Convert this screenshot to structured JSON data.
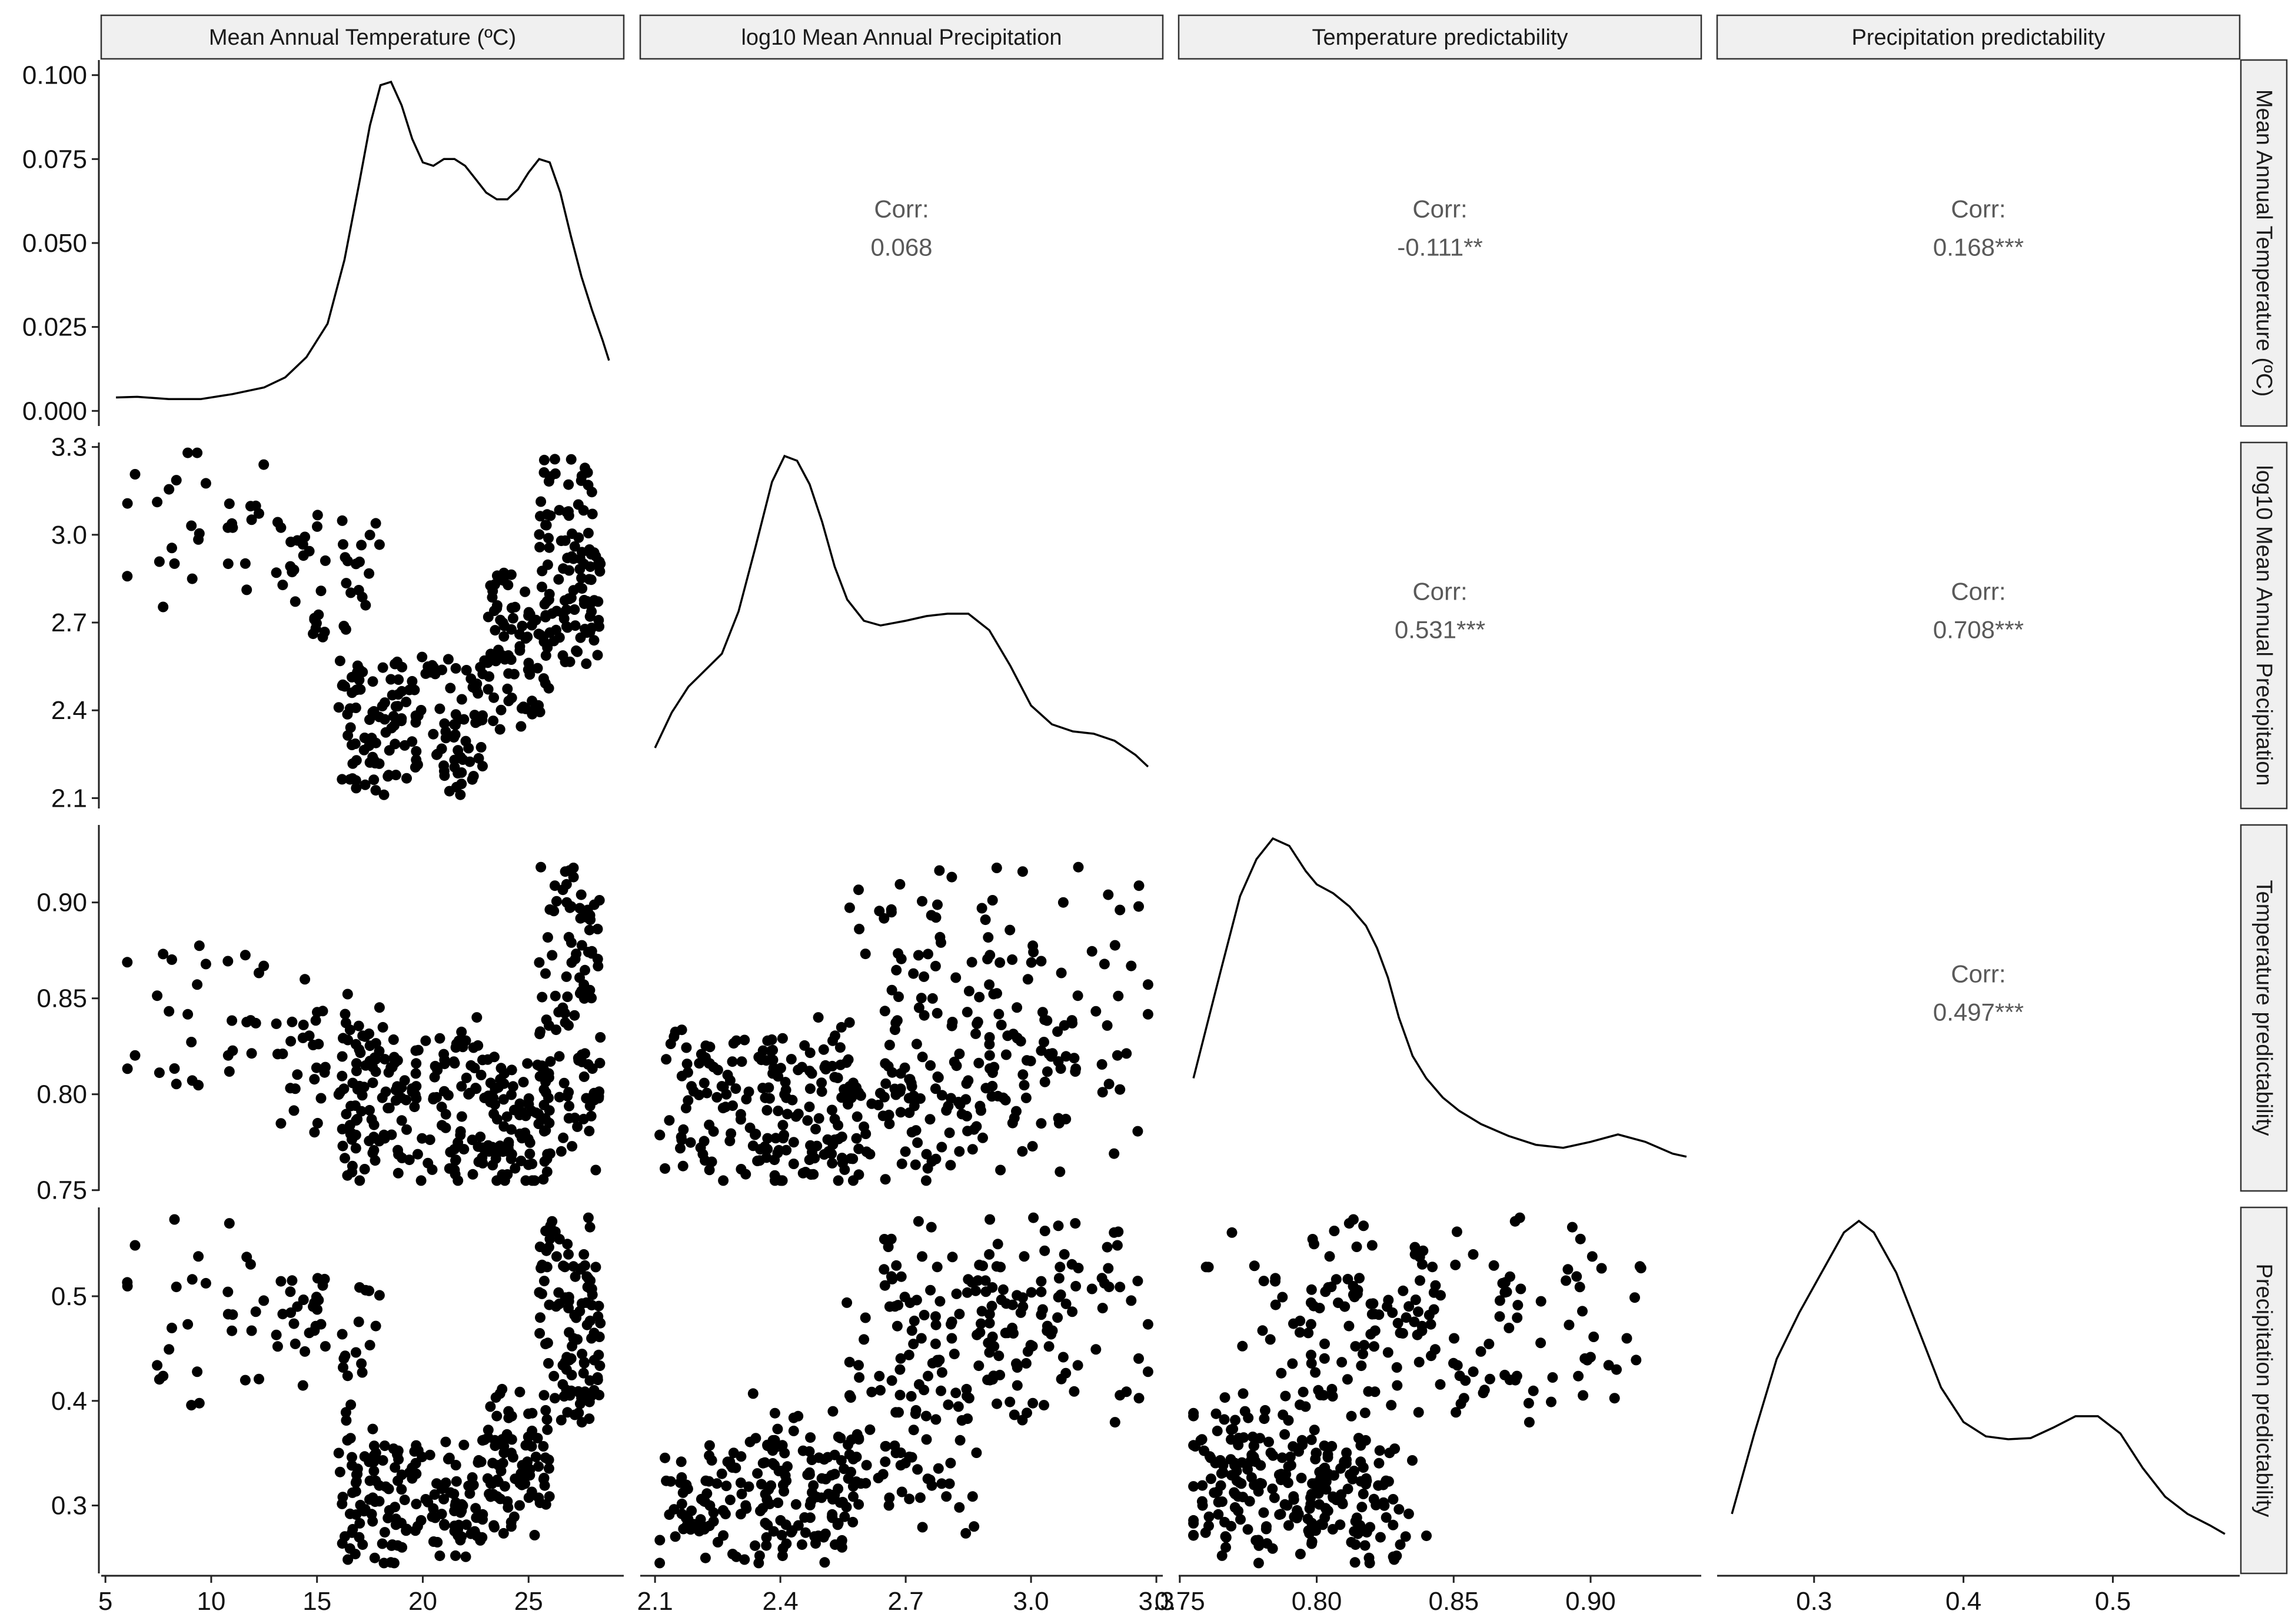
{
  "chart_data": {
    "type": "scatter",
    "variables": [
      {
        "key": "mat",
        "label": "Mean Annual Temperature (ºC)",
        "range": [
          5.5,
          28.8
        ],
        "ticks": [
          5,
          10,
          15,
          20,
          25
        ],
        "tick_labels": [
          "5",
          "10",
          "15",
          "20",
          "25"
        ]
      },
      {
        "key": "map",
        "label": "log10 Mean Annual Precipitation",
        "range": [
          2.1,
          3.28
        ],
        "ticks": [
          2.1,
          2.4,
          2.7,
          3.0,
          3.3
        ],
        "tick_labels": [
          "2.1",
          "2.4",
          "2.7",
          "3.0",
          "3.3"
        ]
      },
      {
        "key": "tp",
        "label": "Temperature predictability",
        "range": [
          0.755,
          0.935
        ],
        "ticks": [
          0.75,
          0.8,
          0.85,
          0.9
        ],
        "tick_labels": [
          "0.75",
          "0.80",
          "0.85",
          "0.90"
        ]
      },
      {
        "key": "pp",
        "label": "Precipitation predictability",
        "range": [
          0.245,
          0.575
        ],
        "ticks": [
          0.3,
          0.4,
          0.5
        ],
        "tick_labels": [
          "0.3",
          "0.4",
          "0.5"
        ]
      }
    ],
    "density_axis": {
      "ylim": [
        0,
        0.1
      ],
      "ticks": [
        0,
        0.025,
        0.05,
        0.075,
        0.1
      ],
      "tick_labels": [
        "0.000",
        "0.025",
        "0.050",
        "0.075",
        "0.100"
      ]
    },
    "densities": [
      {
        "var": "mat",
        "x": [
          5.5,
          6.5,
          8,
          9.5,
          11,
          12.5,
          13.5,
          14.5,
          15.5,
          16.3,
          17,
          17.5,
          18,
          18.5,
          19,
          19.5,
          20,
          20.5,
          21,
          21.5,
          22,
          22.5,
          23,
          23.5,
          24,
          24.5,
          25,
          25.5,
          26,
          26.5,
          27,
          27.5,
          28,
          28.5,
          28.8
        ],
        "y": [
          0.004,
          0.0042,
          0.0035,
          0.0035,
          0.005,
          0.007,
          0.01,
          0.016,
          0.026,
          0.045,
          0.068,
          0.085,
          0.097,
          0.098,
          0.091,
          0.081,
          0.074,
          0.073,
          0.075,
          0.075,
          0.073,
          0.069,
          0.065,
          0.063,
          0.063,
          0.066,
          0.071,
          0.075,
          0.074,
          0.065,
          0.052,
          0.04,
          0.03,
          0.021,
          0.015
        ]
      },
      {
        "var": "map",
        "x": [
          2.1,
          2.14,
          2.18,
          2.22,
          2.26,
          2.3,
          2.34,
          2.38,
          2.41,
          2.44,
          2.47,
          2.5,
          2.53,
          2.56,
          2.6,
          2.64,
          2.7,
          2.75,
          2.8,
          2.85,
          2.9,
          2.95,
          3.0,
          3.05,
          3.1,
          3.15,
          3.2,
          3.25,
          3.28
        ],
        "y": [
          0.2,
          0.35,
          0.46,
          0.53,
          0.6,
          0.78,
          1.05,
          1.33,
          1.44,
          1.42,
          1.32,
          1.16,
          0.97,
          0.83,
          0.74,
          0.72,
          0.74,
          0.76,
          0.77,
          0.77,
          0.7,
          0.55,
          0.38,
          0.3,
          0.27,
          0.26,
          0.23,
          0.17,
          0.12
        ]
      },
      {
        "var": "tp",
        "x": [
          0.755,
          0.765,
          0.772,
          0.778,
          0.784,
          0.79,
          0.796,
          0.8,
          0.806,
          0.812,
          0.818,
          0.822,
          0.826,
          0.83,
          0.835,
          0.84,
          0.846,
          0.852,
          0.86,
          0.87,
          0.88,
          0.89,
          0.9,
          0.91,
          0.92,
          0.93,
          0.935
        ],
        "y": [
          6.7,
          14,
          19,
          21.5,
          22.9,
          22.4,
          20.7,
          19.8,
          19.2,
          18.3,
          17,
          15.5,
          13.5,
          10.8,
          8.2,
          6.7,
          5.4,
          4.5,
          3.6,
          2.8,
          2.2,
          2.0,
          2.4,
          2.9,
          2.4,
          1.6,
          1.4
        ]
      },
      {
        "var": "pp",
        "x": [
          0.245,
          0.26,
          0.275,
          0.29,
          0.305,
          0.32,
          0.33,
          0.34,
          0.355,
          0.37,
          0.385,
          0.4,
          0.415,
          0.43,
          0.445,
          0.46,
          0.475,
          0.49,
          0.505,
          0.52,
          0.535,
          0.55,
          0.565,
          0.575
        ],
        "y": [
          0.8,
          2.2,
          3.5,
          4.3,
          5.0,
          5.7,
          5.9,
          5.7,
          5.0,
          4.0,
          3.0,
          2.4,
          2.15,
          2.1,
          2.12,
          2.3,
          2.5,
          2.5,
          2.2,
          1.6,
          1.1,
          0.8,
          0.6,
          0.45
        ]
      }
    ],
    "correlations": [
      {
        "row": 0,
        "col": 1,
        "label": "Corr:",
        "value": "0.068"
      },
      {
        "row": 0,
        "col": 2,
        "label": "Corr:",
        "value": "-0.111**"
      },
      {
        "row": 0,
        "col": 3,
        "label": "Corr:",
        "value": "0.168***"
      },
      {
        "row": 1,
        "col": 2,
        "label": "Corr:",
        "value": "0.531***"
      },
      {
        "row": 1,
        "col": 3,
        "label": "Corr:",
        "value": "0.708***"
      },
      {
        "row": 2,
        "col": 3,
        "label": "Corr:",
        "value": "0.497***"
      }
    ],
    "sample_size": 420,
    "point_color": "#000000",
    "grid": false,
    "strip_color": "#f0f0f0"
  }
}
